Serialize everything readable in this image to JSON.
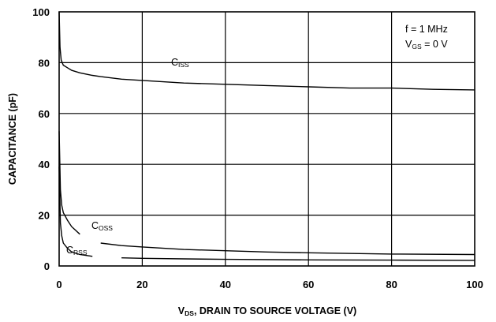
{
  "chart_data": {
    "type": "line",
    "title": "",
    "xlabel": {
      "main": "V",
      "sub": "DS",
      "rest": ", DRAIN TO SOURCE VOLTAGE (V)"
    },
    "ylabel": "CAPACITANCE (pF)",
    "xlim": [
      0,
      100
    ],
    "ylim": [
      0,
      100
    ],
    "xticks": [
      0,
      20,
      40,
      60,
      80,
      100
    ],
    "yticks": [
      0,
      20,
      40,
      60,
      80,
      100
    ],
    "grid": true,
    "annotation": {
      "line1": "f = 1 MHz",
      "line2_main": "V",
      "line2_sub": "GS",
      "line2_rest": " = 0 V"
    },
    "series": [
      {
        "name": "Ciss",
        "label_main": "C",
        "label_sub": "ISS",
        "x": [
          0,
          0.2,
          0.5,
          1,
          2,
          3,
          5,
          8,
          10,
          15,
          20,
          30,
          40,
          50,
          60,
          70,
          80,
          90,
          100
        ],
        "y": [
          100,
          86,
          81,
          79,
          78,
          77,
          76,
          75,
          74.5,
          73.5,
          73,
          72,
          71.5,
          71,
          70.5,
          70,
          70,
          69.5,
          69.3
        ]
      },
      {
        "name": "Coss",
        "label_main": "C",
        "label_sub": "OSS",
        "x": [
          0,
          0.3,
          0.6,
          1,
          2,
          3,
          5,
          7,
          10,
          15,
          20,
          30,
          40,
          50,
          60,
          80,
          100
        ],
        "y": [
          53,
          30,
          24,
          21,
          18,
          15.5,
          12.5,
          10,
          9,
          8,
          7.5,
          6.5,
          6,
          5.5,
          5.2,
          4.7,
          4.5
        ]
      },
      {
        "name": "Crss",
        "label_main": "C",
        "label_sub": "RSS",
        "x": [
          0,
          0.3,
          0.6,
          1,
          2,
          3,
          5,
          8,
          10,
          15,
          20,
          30,
          40,
          60,
          80,
          100
        ],
        "y": [
          39,
          17,
          12,
          9,
          7,
          5.5,
          4.5,
          3.8,
          3.5,
          3.2,
          3,
          2.8,
          2.6,
          2.4,
          2.3,
          2.2
        ]
      }
    ]
  }
}
